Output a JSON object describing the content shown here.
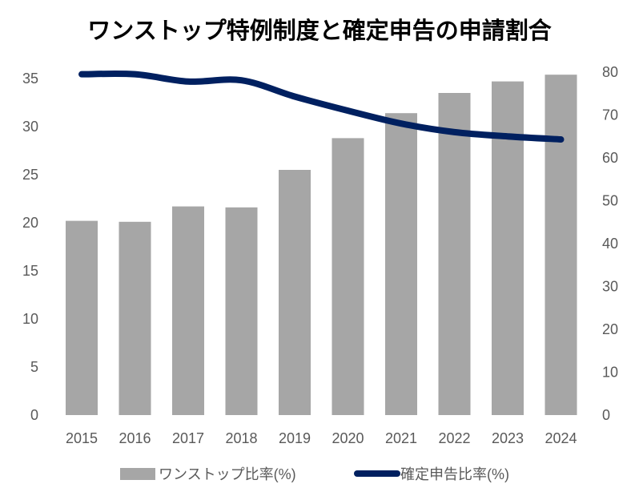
{
  "chart_data": {
    "type": "bar",
    "title": "ワンストップ特例制度と確定申告の申請割合",
    "categories": [
      "2015",
      "2016",
      "2017",
      "2018",
      "2019",
      "2020",
      "2021",
      "2022",
      "2023",
      "2024"
    ],
    "series": [
      {
        "name": "ワンストップ比率(%)",
        "type": "bar",
        "axis": "left",
        "color": "#a6a6a6",
        "values": [
          20.2,
          20.1,
          21.7,
          21.6,
          25.5,
          28.8,
          31.4,
          33.5,
          34.7,
          35.4
        ]
      },
      {
        "name": "確定申告比率(%)",
        "type": "line",
        "axis": "right",
        "color": "#002060",
        "values": [
          79.5,
          79.5,
          77.8,
          78.1,
          74.3,
          71.0,
          68.0,
          66.0,
          65.0,
          64.3
        ]
      }
    ],
    "ylim_left": [
      0,
      35
    ],
    "yticks_left": [
      "0",
      "5",
      "10",
      "15",
      "20",
      "25",
      "30",
      "35"
    ],
    "ylim_right": [
      0,
      80
    ],
    "yticks_right": [
      "0",
      "10",
      "20",
      "30",
      "40",
      "50",
      "60",
      "70",
      "80"
    ],
    "xlabel": "",
    "ylabel": "",
    "grid": false,
    "legend": "bottom"
  }
}
